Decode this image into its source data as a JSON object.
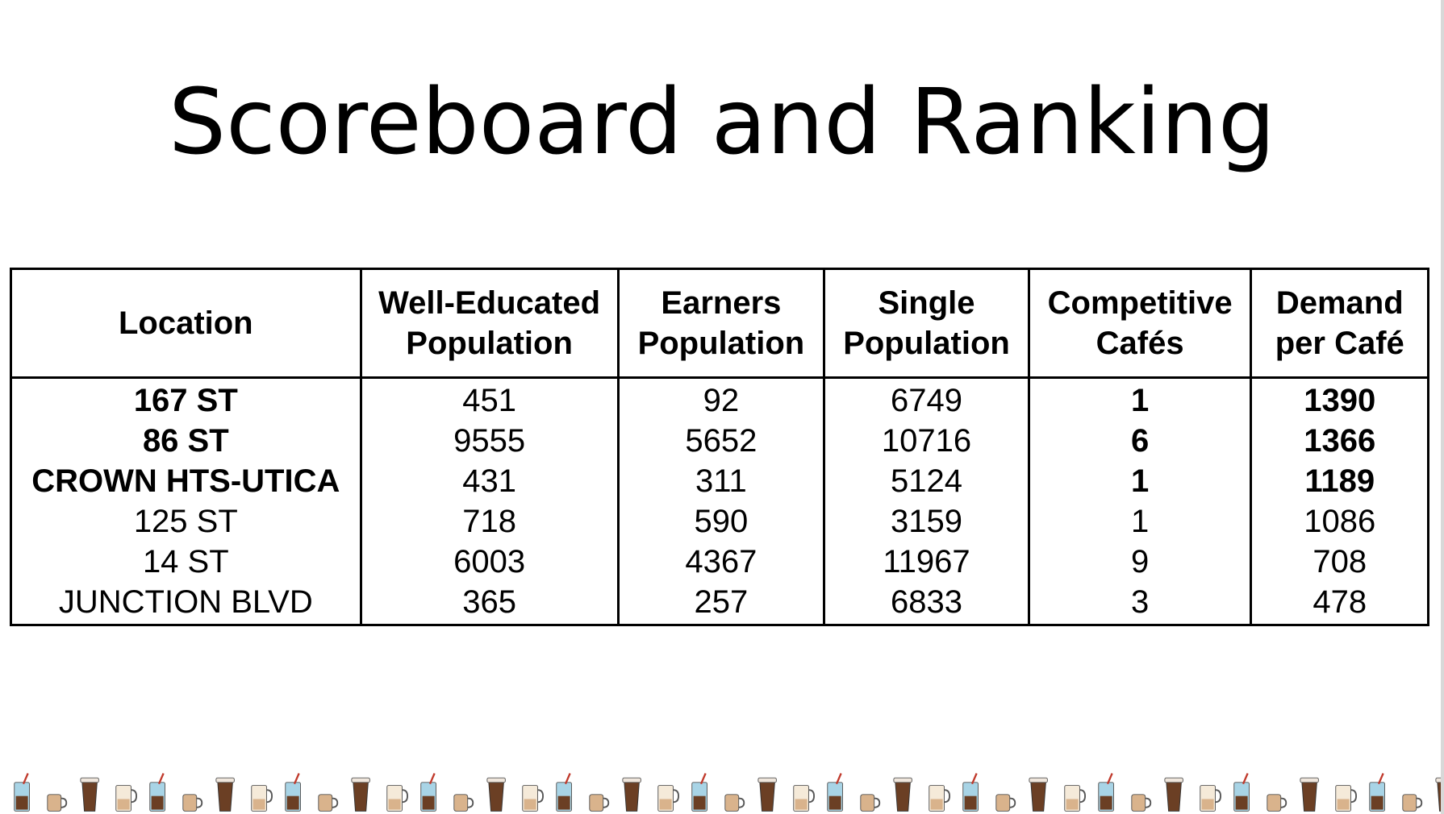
{
  "slide": {
    "title": "Scoreboard and Ranking"
  },
  "table": {
    "headers": [
      "Location",
      "Well-Educated Population",
      "Earners Population",
      "Single Population",
      "Competitive Cafés",
      "Demand per Café"
    ],
    "rows": [
      {
        "location": "167 ST",
        "well_educated": "451",
        "earners": "92",
        "single": "6749",
        "cafes": "1",
        "demand": "1390",
        "highlight": true
      },
      {
        "location": "86 ST",
        "well_educated": "9555",
        "earners": "5652",
        "single": "10716",
        "cafes": "6",
        "demand": "1366",
        "highlight": true
      },
      {
        "location": "CROWN HTS-UTICA",
        "well_educated": "431",
        "earners": "311",
        "single": "5124",
        "cafes": "1",
        "demand": "1189",
        "highlight": true
      },
      {
        "location": "125 ST",
        "well_educated": "718",
        "earners": "590",
        "single": "3159",
        "cafes": "1",
        "demand": "1086",
        "highlight": false
      },
      {
        "location": "14 ST",
        "well_educated": "6003",
        "earners": "4367",
        "single": "11967",
        "cafes": "9",
        "demand": "708",
        "highlight": false
      },
      {
        "location": "JUNCTION BLVD",
        "well_educated": "365",
        "earners": "257",
        "single": "6833",
        "cafes": "3",
        "demand": "478",
        "highlight": false
      }
    ]
  },
  "decoration": {
    "border_icon": "coffee-cup-icon",
    "colors": {
      "brown": "#6b3f24",
      "latte": "#d9b38c",
      "iced": "#a8d4e6",
      "straw": "#c0392b"
    }
  }
}
